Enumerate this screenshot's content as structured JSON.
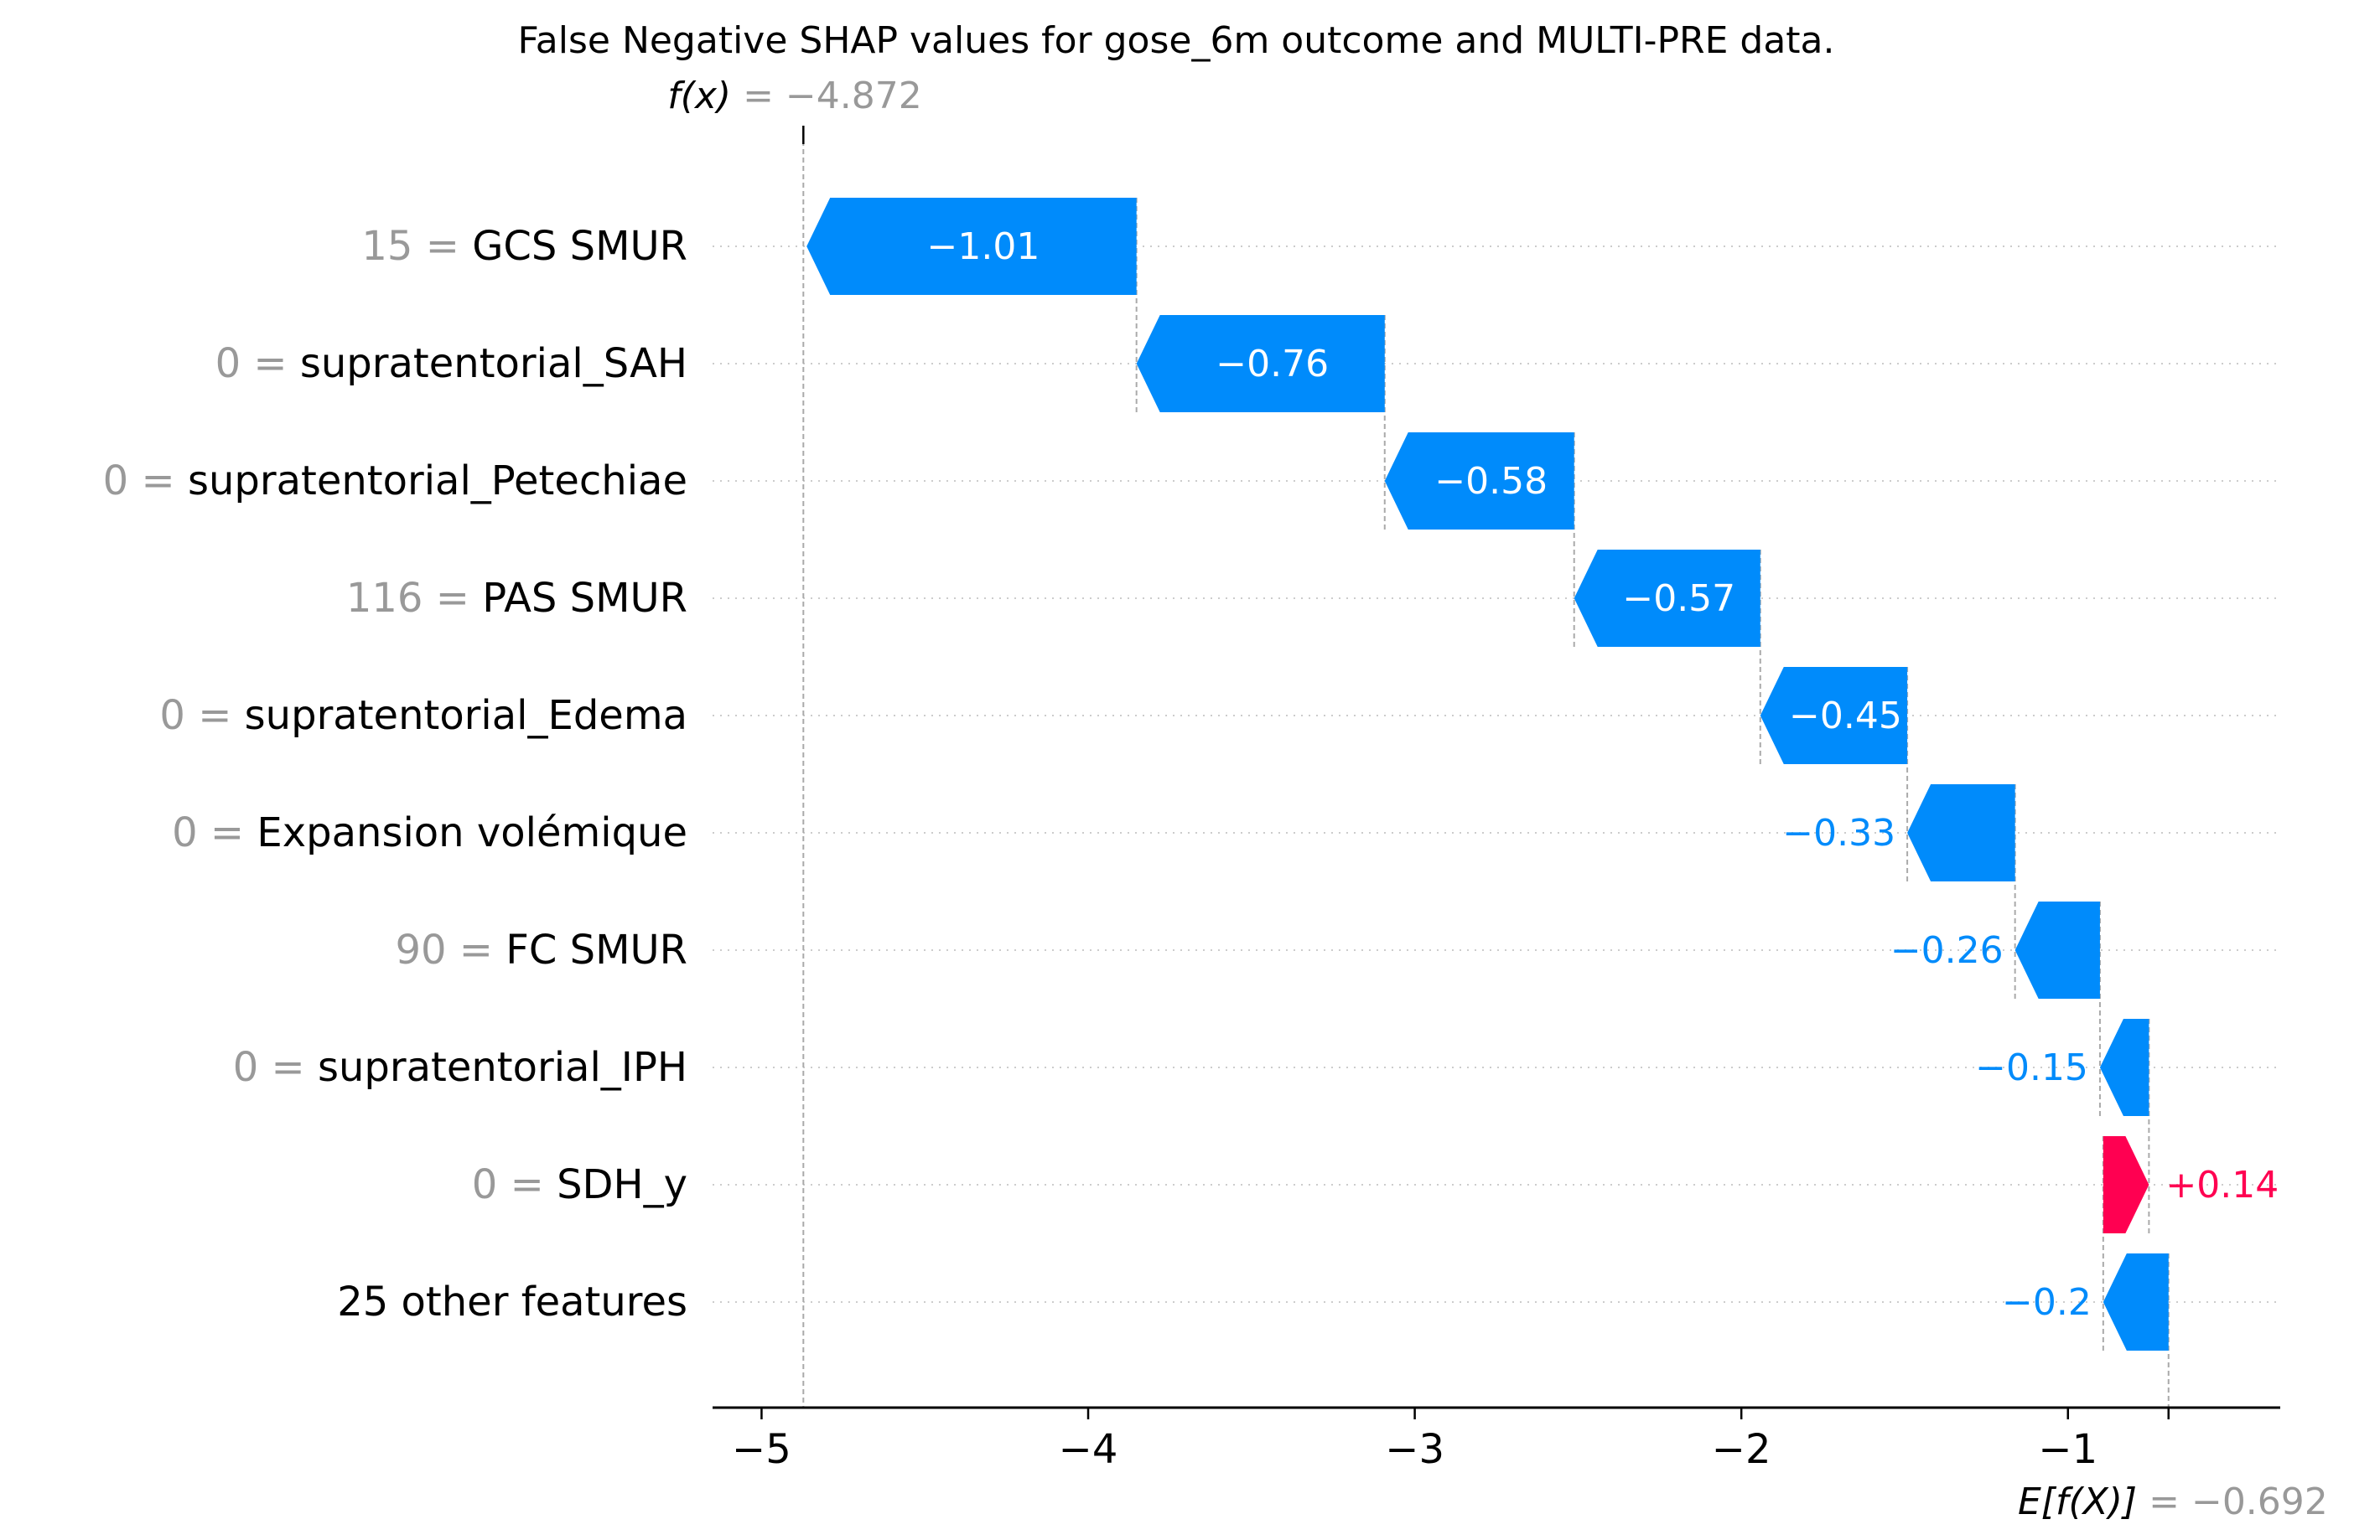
{
  "chart_data": {
    "type": "waterfall",
    "title": "False Negative SHAP values for gose_6m outcome and MULTI-PRE data.",
    "fx_prefix": "f(x)",
    "fx_suffix": " = −4.872",
    "fx": -4.872,
    "efx_prefix": "E[f(X)]",
    "efx_suffix": " = −0.692",
    "efx": -0.692,
    "xlim": [
      -5.15,
      -0.35
    ],
    "xticks": [
      -5,
      -4,
      -3,
      -2,
      -1
    ],
    "xtick_labels": [
      "−5",
      "−4",
      "−3",
      "−2",
      "−1"
    ],
    "grid": "horizontal dotted",
    "features": [
      {
        "value": "15",
        "name": "GCS SMUR",
        "shap": -1.01,
        "label": "−1.01"
      },
      {
        "value": "0",
        "name": "supratentorial_SAH",
        "shap": -0.76,
        "label": "−0.76"
      },
      {
        "value": "0",
        "name": "supratentorial_Petechiae",
        "shap": -0.58,
        "label": "−0.58"
      },
      {
        "value": "116",
        "name": "PAS  SMUR",
        "shap": -0.57,
        "label": "−0.57"
      },
      {
        "value": "0",
        "name": "supratentorial_Edema",
        "shap": -0.45,
        "label": "−0.45"
      },
      {
        "value": "0",
        "name": "Expansion volémique",
        "shap": -0.33,
        "label": "−0.33"
      },
      {
        "value": "90",
        "name": "FC SMUR",
        "shap": -0.26,
        "label": "−0.26"
      },
      {
        "value": "0",
        "name": "supratentorial_IPH",
        "shap": -0.15,
        "label": "−0.15"
      },
      {
        "value": "0",
        "name": "SDH_y",
        "shap": 0.14,
        "label": "+0.14"
      },
      {
        "value": "",
        "name": "25 other features",
        "shap": -0.2,
        "label": "−0.2"
      }
    ],
    "colors": {
      "negative": "#008bfb",
      "positive": "#ff0051",
      "grey": "#999999"
    }
  }
}
